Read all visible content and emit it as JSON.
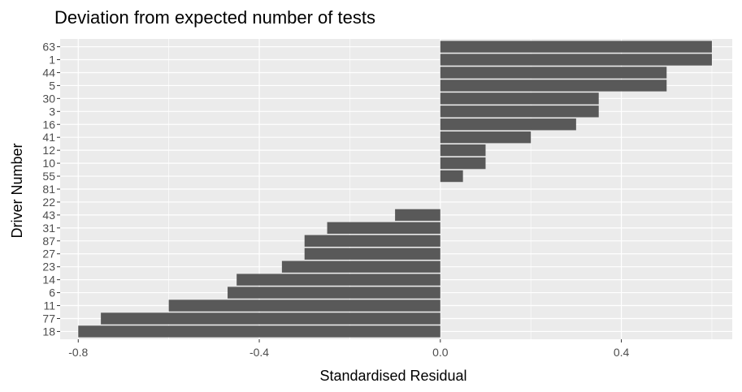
{
  "chart_data": {
    "type": "bar",
    "orientation": "horizontal",
    "title": "Deviation from expected number of tests",
    "xlabel": "Standardised Residual",
    "ylabel": "Driver Number",
    "xlim": [
      -0.84,
      0.645
    ],
    "x_ticks": [
      -0.8,
      -0.4,
      0.0,
      0.4
    ],
    "x_tick_labels": [
      "-0.8",
      "-0.4",
      "0.0",
      "0.4"
    ],
    "grid": true,
    "categories": [
      "63",
      "1",
      "44",
      "5",
      "30",
      "3",
      "16",
      "41",
      "12",
      "10",
      "55",
      "81",
      "22",
      "43",
      "31",
      "87",
      "27",
      "23",
      "14",
      "6",
      "11",
      "77",
      "18"
    ],
    "values": [
      0.6,
      0.6,
      0.5,
      0.5,
      0.35,
      0.35,
      0.3,
      0.2,
      0.1,
      0.1,
      0.05,
      0.0,
      0.0,
      -0.1,
      -0.25,
      -0.3,
      -0.3,
      -0.35,
      -0.45,
      -0.47,
      -0.6,
      -0.75,
      -0.8
    ],
    "bar_color": "#595959",
    "panel_color": "#ebebeb",
    "grid_color": "#ffffff"
  }
}
